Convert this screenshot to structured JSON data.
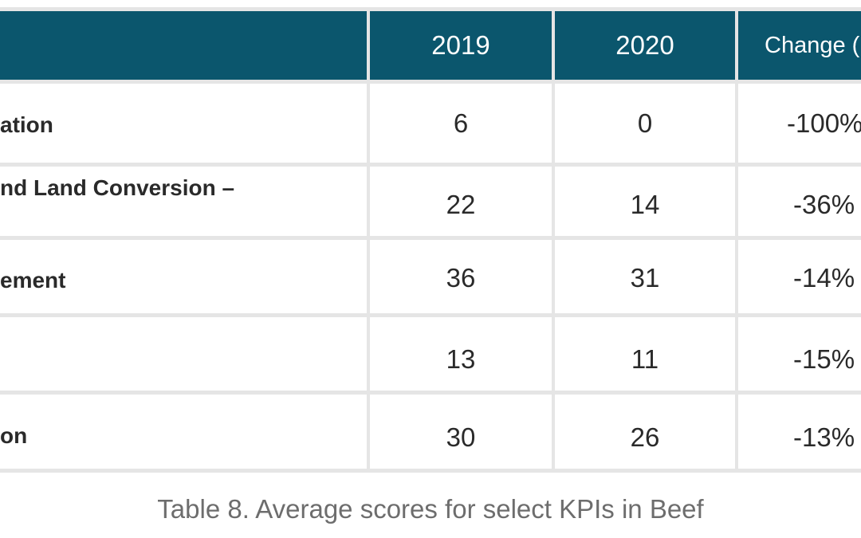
{
  "table": {
    "headers": {
      "kpi": "",
      "y2019": "2019",
      "y2020": "2020",
      "change": "Change ("
    },
    "rows": [
      {
        "kpi": "ation",
        "y2019": "6",
        "y2020": "0",
        "change": "-100%"
      },
      {
        "kpi": "nd Land Conversion –",
        "y2019": "22",
        "y2020": "14",
        "change": "-36%"
      },
      {
        "kpi": "ement",
        "y2019": "36",
        "y2020": "31",
        "change": "-14%"
      },
      {
        "kpi": "",
        "y2019": "13",
        "y2020": "11",
        "change": "-15%"
      },
      {
        "kpi": "on",
        "y2019": "30",
        "y2020": "26",
        "change": "-13%"
      }
    ]
  },
  "caption": "Table 8. Average scores for select KPIs in Beef",
  "colors": {
    "header_background": "#0b566d",
    "header_text": "#ffffff",
    "grid_lines": "#e5e5e5",
    "body_text": "#2a2a2a",
    "caption_text": "#6d6d6d"
  }
}
